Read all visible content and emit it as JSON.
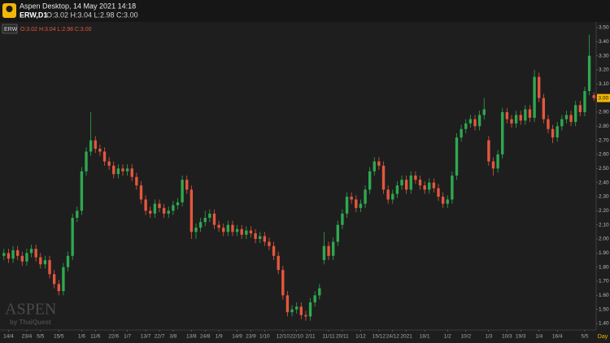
{
  "header": {
    "app": "Aspen Desktop, 14 May 2021 14:18",
    "symbol": "ERW,D1",
    "ohlc": "O:3.02 H:3.04 L:2.98 C:3.00"
  },
  "legend": {
    "symbol": "ERW",
    "ohlc": "O:3.02 H:3.04 L:2.98 C:3.00"
  },
  "watermark": {
    "brand": "ASPEN",
    "by": "by ThaiQuest"
  },
  "period_label": "Day",
  "chart_data": {
    "type": "candlestick",
    "up_color": "#2fa84f",
    "down_color": "#e4573d",
    "categories": [
      null,
      "14/4",
      null,
      null,
      null,
      "23/4",
      null,
      null,
      "5/5",
      null,
      null,
      null,
      "15/5",
      null,
      null,
      null,
      null,
      "1/6",
      null,
      null,
      "11/6",
      null,
      null,
      null,
      "22/6",
      null,
      null,
      "1/7",
      null,
      null,
      null,
      "13/7",
      null,
      null,
      "22/7",
      null,
      null,
      "3/8",
      null,
      null,
      null,
      "13/8",
      null,
      null,
      "24/8",
      null,
      null,
      "1/9",
      null,
      null,
      null,
      "14/9",
      null,
      null,
      "23/9",
      null,
      null,
      "1/10",
      null,
      null,
      null,
      "12/10",
      null,
      null,
      "22/10",
      null,
      null,
      "2/11",
      null,
      null,
      null,
      "11/11",
      null,
      null,
      "20/11",
      null,
      null,
      null,
      "1/12",
      null,
      null,
      null,
      "15/12",
      null,
      null,
      "24/12",
      null,
      null,
      "2021",
      null,
      null,
      null,
      "18/1",
      null,
      null,
      null,
      null,
      "1/2",
      null,
      null,
      null,
      "10/2",
      null,
      null,
      null,
      null,
      "1/3",
      null,
      null,
      null,
      "10/3",
      null,
      null,
      "19/3",
      null,
      null,
      null,
      "1/4",
      null,
      null,
      null,
      "16/4",
      null,
      null,
      null,
      null,
      null,
      "5/5",
      null,
      null
    ],
    "open": [
      1.88,
      1.9,
      1.86,
      1.92,
      1.88,
      1.84,
      1.9,
      1.93,
      1.87,
      1.82,
      1.85,
      1.75,
      1.68,
      1.63,
      1.8,
      1.88,
      2.15,
      2.2,
      2.48,
      2.62,
      2.7,
      2.64,
      2.62,
      2.55,
      2.52,
      2.46,
      2.5,
      2.48,
      2.5,
      2.44,
      2.38,
      2.28,
      2.2,
      2.18,
      2.25,
      2.22,
      2.18,
      2.2,
      2.24,
      2.26,
      2.42,
      2.35,
      2.05,
      2.08,
      2.12,
      2.15,
      2.18,
      2.1,
      2.08,
      2.05,
      2.1,
      2.05,
      2.07,
      2.03,
      2.06,
      2.04,
      2.0,
      2.02,
      1.98,
      1.95,
      1.88,
      1.78,
      1.6,
      1.48,
      1.5,
      1.52,
      1.46,
      1.45,
      1.55,
      1.6,
      1.85,
      1.95,
      1.88,
      1.98,
      2.1,
      2.18,
      2.3,
      2.28,
      2.22,
      2.25,
      2.35,
      2.48,
      2.55,
      2.52,
      2.35,
      2.28,
      2.32,
      2.38,
      2.42,
      2.35,
      2.45,
      2.42,
      2.38,
      2.35,
      2.4,
      2.36,
      2.3,
      2.25,
      2.28,
      2.45,
      2.72,
      2.78,
      2.82,
      2.85,
      2.8,
      2.88,
      2.7,
      2.55,
      2.5,
      2.6,
      2.9,
      2.85,
      2.82,
      2.88,
      2.84,
      2.92,
      2.86,
      3.15,
      3.0,
      2.85,
      2.78,
      2.72,
      2.8,
      2.85,
      2.88,
      2.83,
      2.95,
      2.9,
      3.05,
      3.02
    ],
    "high": [
      1.93,
      1.93,
      1.95,
      1.95,
      1.91,
      1.93,
      1.96,
      1.96,
      1.9,
      1.88,
      1.88,
      1.78,
      1.71,
      1.83,
      1.91,
      2.18,
      2.23,
      2.51,
      2.65,
      2.9,
      2.73,
      2.67,
      2.65,
      2.58,
      2.55,
      2.53,
      2.53,
      2.53,
      2.53,
      2.47,
      2.41,
      2.31,
      2.23,
      2.28,
      2.28,
      2.25,
      2.23,
      2.27,
      2.29,
      2.45,
      2.45,
      2.38,
      2.11,
      2.15,
      2.2,
      2.21,
      2.21,
      2.13,
      2.11,
      2.13,
      2.13,
      2.1,
      2.1,
      2.09,
      2.09,
      2.07,
      2.05,
      2.05,
      2.01,
      1.98,
      1.91,
      1.81,
      1.63,
      1.53,
      1.55,
      1.55,
      1.49,
      1.58,
      1.63,
      1.68,
      2.05,
      1.98,
      2.01,
      2.13,
      2.21,
      2.33,
      2.33,
      2.31,
      2.28,
      2.38,
      2.51,
      2.58,
      2.58,
      2.55,
      2.38,
      2.35,
      2.41,
      2.45,
      2.45,
      2.48,
      2.48,
      2.45,
      2.41,
      2.43,
      2.43,
      2.39,
      2.33,
      2.31,
      2.48,
      2.75,
      2.81,
      2.85,
      2.88,
      2.88,
      2.91,
      3.0,
      2.73,
      2.58,
      2.63,
      2.93,
      2.93,
      2.88,
      2.91,
      2.91,
      2.95,
      2.95,
      3.2,
      3.18,
      3.03,
      2.88,
      2.81,
      2.83,
      2.88,
      2.91,
      2.91,
      2.98,
      2.98,
      3.08,
      3.45,
      3.04
    ],
    "low": [
      1.85,
      1.83,
      1.83,
      1.85,
      1.81,
      1.81,
      1.87,
      1.84,
      1.79,
      1.79,
      1.72,
      1.65,
      1.6,
      1.6,
      1.77,
      1.85,
      2.12,
      2.17,
      2.45,
      2.59,
      2.61,
      2.59,
      2.52,
      2.49,
      2.43,
      2.43,
      2.45,
      2.45,
      2.41,
      2.35,
      2.25,
      2.17,
      2.15,
      2.15,
      2.19,
      2.15,
      2.15,
      2.17,
      2.21,
      2.23,
      2.32,
      2.0,
      2.0,
      2.05,
      2.09,
      2.12,
      2.07,
      2.05,
      2.02,
      2.02,
      2.02,
      2.02,
      2.0,
      2.0,
      2.01,
      1.97,
      1.97,
      1.95,
      1.92,
      1.85,
      1.75,
      1.57,
      1.45,
      1.45,
      1.47,
      1.43,
      1.42,
      1.42,
      1.52,
      1.57,
      1.82,
      1.85,
      1.85,
      1.95,
      2.07,
      2.15,
      2.25,
      2.19,
      2.19,
      2.22,
      2.32,
      2.45,
      2.49,
      2.32,
      2.25,
      2.25,
      2.29,
      2.35,
      2.32,
      2.32,
      2.39,
      2.35,
      2.32,
      2.32,
      2.33,
      2.27,
      2.22,
      2.22,
      2.25,
      2.42,
      2.69,
      2.75,
      2.79,
      2.77,
      2.77,
      2.85,
      2.52,
      2.45,
      2.47,
      2.57,
      2.82,
      2.79,
      2.79,
      2.81,
      2.81,
      2.83,
      2.83,
      2.97,
      2.82,
      2.75,
      2.68,
      2.69,
      2.77,
      2.82,
      2.8,
      2.8,
      2.87,
      2.87,
      3.02,
      2.98
    ],
    "close": [
      1.9,
      1.86,
      1.92,
      1.88,
      1.84,
      1.9,
      1.93,
      1.87,
      1.82,
      1.85,
      1.75,
      1.68,
      1.63,
      1.8,
      1.88,
      2.15,
      2.2,
      2.48,
      2.62,
      2.7,
      2.64,
      2.62,
      2.55,
      2.52,
      2.46,
      2.5,
      2.48,
      2.5,
      2.44,
      2.38,
      2.28,
      2.2,
      2.18,
      2.25,
      2.22,
      2.18,
      2.2,
      2.24,
      2.26,
      2.42,
      2.35,
      2.05,
      2.08,
      2.12,
      2.15,
      2.18,
      2.1,
      2.08,
      2.05,
      2.1,
      2.05,
      2.07,
      2.03,
      2.06,
      2.04,
      2.0,
      2.02,
      1.98,
      1.95,
      1.88,
      1.78,
      1.6,
      1.48,
      1.5,
      1.52,
      1.46,
      1.45,
      1.55,
      1.6,
      1.65,
      1.95,
      1.88,
      1.98,
      2.1,
      2.18,
      2.3,
      2.28,
      2.22,
      2.25,
      2.35,
      2.48,
      2.55,
      2.52,
      2.35,
      2.28,
      2.32,
      2.38,
      2.42,
      2.35,
      2.45,
      2.42,
      2.38,
      2.35,
      2.4,
      2.36,
      2.3,
      2.25,
      2.28,
      2.45,
      2.72,
      2.78,
      2.82,
      2.85,
      2.8,
      2.88,
      2.92,
      2.55,
      2.5,
      2.6,
      2.9,
      2.85,
      2.82,
      2.88,
      2.84,
      2.92,
      2.86,
      3.15,
      3.0,
      2.85,
      2.78,
      2.72,
      2.8,
      2.85,
      2.88,
      2.83,
      2.95,
      2.9,
      3.05,
      3.3,
      3.0
    ],
    "last_price": {
      "value": 3.0,
      "label": "3.00"
    },
    "ylim": [
      1.354,
      3.54
    ],
    "yticks": [
      {
        "value": 1.4,
        "label": "1.40"
      },
      {
        "value": 1.5,
        "label": "1.50"
      },
      {
        "value": 1.6,
        "label": "1.60"
      },
      {
        "value": 1.7,
        "label": "1.70"
      },
      {
        "value": 1.8,
        "label": "1.80"
      },
      {
        "value": 1.9,
        "label": "1.90"
      },
      {
        "value": 2.0,
        "label": "2.00"
      },
      {
        "value": 2.1,
        "label": "2.10"
      },
      {
        "value": 2.2,
        "label": "2.20"
      },
      {
        "value": 2.3,
        "label": "2.30"
      },
      {
        "value": 2.4,
        "label": "2.40"
      },
      {
        "value": 2.5,
        "label": "2.50"
      },
      {
        "value": 2.6,
        "label": "2.60"
      },
      {
        "value": 2.7,
        "label": "2.70"
      },
      {
        "value": 2.8,
        "label": "2.80"
      },
      {
        "value": 2.9,
        "label": "2.90"
      },
      {
        "value": 3.0,
        "label": "3.00"
      },
      {
        "value": 3.1,
        "label": "3.10"
      },
      {
        "value": 3.2,
        "label": "3.20"
      },
      {
        "value": 3.3,
        "label": "3.30"
      },
      {
        "value": 3.4,
        "label": "3.40"
      },
      {
        "value": 3.5,
        "label": "3.50"
      }
    ],
    "grid": false
  }
}
